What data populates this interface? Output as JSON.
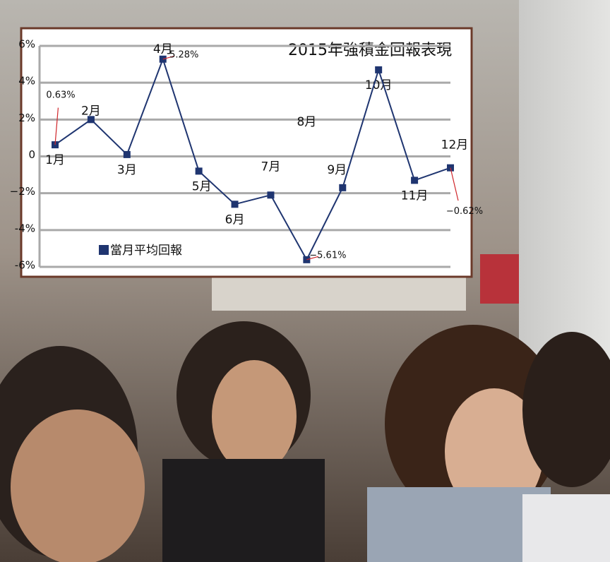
{
  "chart_data": {
    "type": "line",
    "title": "2015年強積金回報表現",
    "categories": [
      "1月",
      "2月",
      "3月",
      "4月",
      "5月",
      "6月",
      "7月",
      "8月",
      "9月",
      "10月",
      "11月",
      "12月"
    ],
    "series": [
      {
        "name": "當月平均回報",
        "color": "#1f3570",
        "values": [
          0.63,
          2.0,
          0.1,
          5.28,
          -0.8,
          -2.6,
          -2.1,
          -5.61,
          -1.7,
          4.7,
          -1.3,
          -0.62
        ],
        "value_labels": [
          "0.63%",
          null,
          null,
          "5.28%",
          null,
          null,
          null,
          "−5.61%",
          null,
          null,
          null,
          "−0.62%"
        ]
      }
    ],
    "ylim": [
      -6,
      6
    ],
    "yticks": [
      {
        "value": -6,
        "label": "-6%"
      },
      {
        "value": -4,
        "label": "-4%"
      },
      {
        "value": -2,
        "label": "−2%"
      },
      0,
      {
        "value": 2,
        "label": "2%"
      },
      {
        "value": 4,
        "label": "4%"
      },
      {
        "value": 6,
        "label": "6%"
      }
    ],
    "grid": true,
    "legend": "lower left",
    "label_color": "#d0262b"
  }
}
